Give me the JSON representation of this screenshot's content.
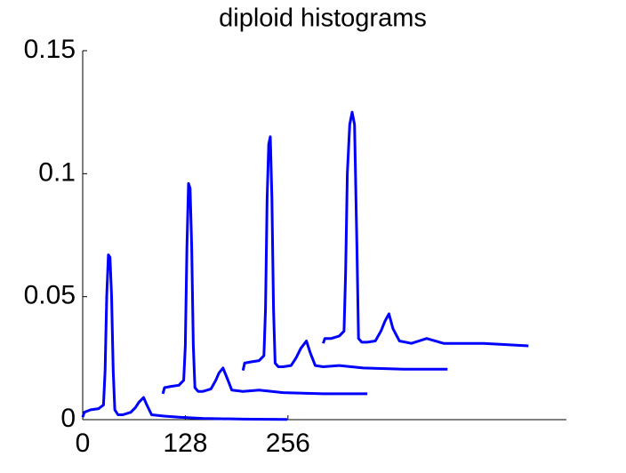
{
  "chart_data": {
    "type": "line",
    "title": "diploid histograms",
    "xlim": [
      0,
      600
    ],
    "xticks": [
      0,
      128,
      256
    ],
    "ylim": [
      0,
      0.15
    ],
    "yticks": [
      0,
      0.05,
      0.1,
      0.15
    ],
    "grid": false,
    "series": [
      {
        "color": "#0000ff",
        "x": [
          0,
          2,
          10,
          20,
          26,
          28,
          30,
          32,
          34,
          36,
          38,
          40,
          44,
          50,
          60,
          66,
          70,
          76,
          80,
          86,
          100,
          120,
          150,
          200,
          255
        ],
        "values": [
          0.001,
          0.003,
          0.004,
          0.0045,
          0.006,
          0.02,
          0.05,
          0.067,
          0.066,
          0.05,
          0.02,
          0.004,
          0.002,
          0.002,
          0.003,
          0.005,
          0.007,
          0.009,
          0.006,
          0.002,
          0.0015,
          0.001,
          0.0005,
          0.0002,
          0.0001
        ]
      },
      {
        "color": "#0000ff",
        "x": [
          100,
          102,
          110,
          120,
          126,
          128,
          130,
          132,
          134,
          136,
          138,
          140,
          144,
          150,
          160,
          166,
          170,
          175,
          180,
          186,
          200,
          220,
          250,
          300,
          355
        ],
        "values": [
          0.0105,
          0.013,
          0.0135,
          0.014,
          0.016,
          0.03,
          0.07,
          0.096,
          0.094,
          0.07,
          0.03,
          0.013,
          0.0115,
          0.0115,
          0.0125,
          0.016,
          0.019,
          0.021,
          0.017,
          0.012,
          0.0115,
          0.012,
          0.011,
          0.0105,
          0.0105
        ]
      },
      {
        "color": "#0000ff",
        "x": [
          200,
          202,
          210,
          220,
          226,
          228,
          230,
          232,
          234,
          236,
          238,
          240,
          244,
          250,
          260,
          266,
          272,
          279,
          284,
          290,
          300,
          320,
          350,
          400,
          455
        ],
        "values": [
          0.02,
          0.023,
          0.0235,
          0.024,
          0.026,
          0.045,
          0.09,
          0.112,
          0.115,
          0.09,
          0.045,
          0.023,
          0.0215,
          0.0215,
          0.022,
          0.025,
          0.029,
          0.032,
          0.027,
          0.022,
          0.0215,
          0.022,
          0.021,
          0.0205,
          0.0205
        ]
      },
      {
        "color": "#0000ff",
        "x": [
          300,
          302,
          310,
          320,
          326,
          328,
          330,
          333,
          336,
          339,
          342,
          344,
          348,
          355,
          365,
          372,
          377,
          382,
          387,
          395,
          410,
          429,
          450,
          500,
          556
        ],
        "values": [
          0.031,
          0.033,
          0.033,
          0.034,
          0.036,
          0.06,
          0.1,
          0.12,
          0.125,
          0.12,
          0.07,
          0.033,
          0.0315,
          0.0315,
          0.032,
          0.036,
          0.04,
          0.043,
          0.037,
          0.032,
          0.031,
          0.033,
          0.031,
          0.031,
          0.03
        ]
      }
    ]
  }
}
